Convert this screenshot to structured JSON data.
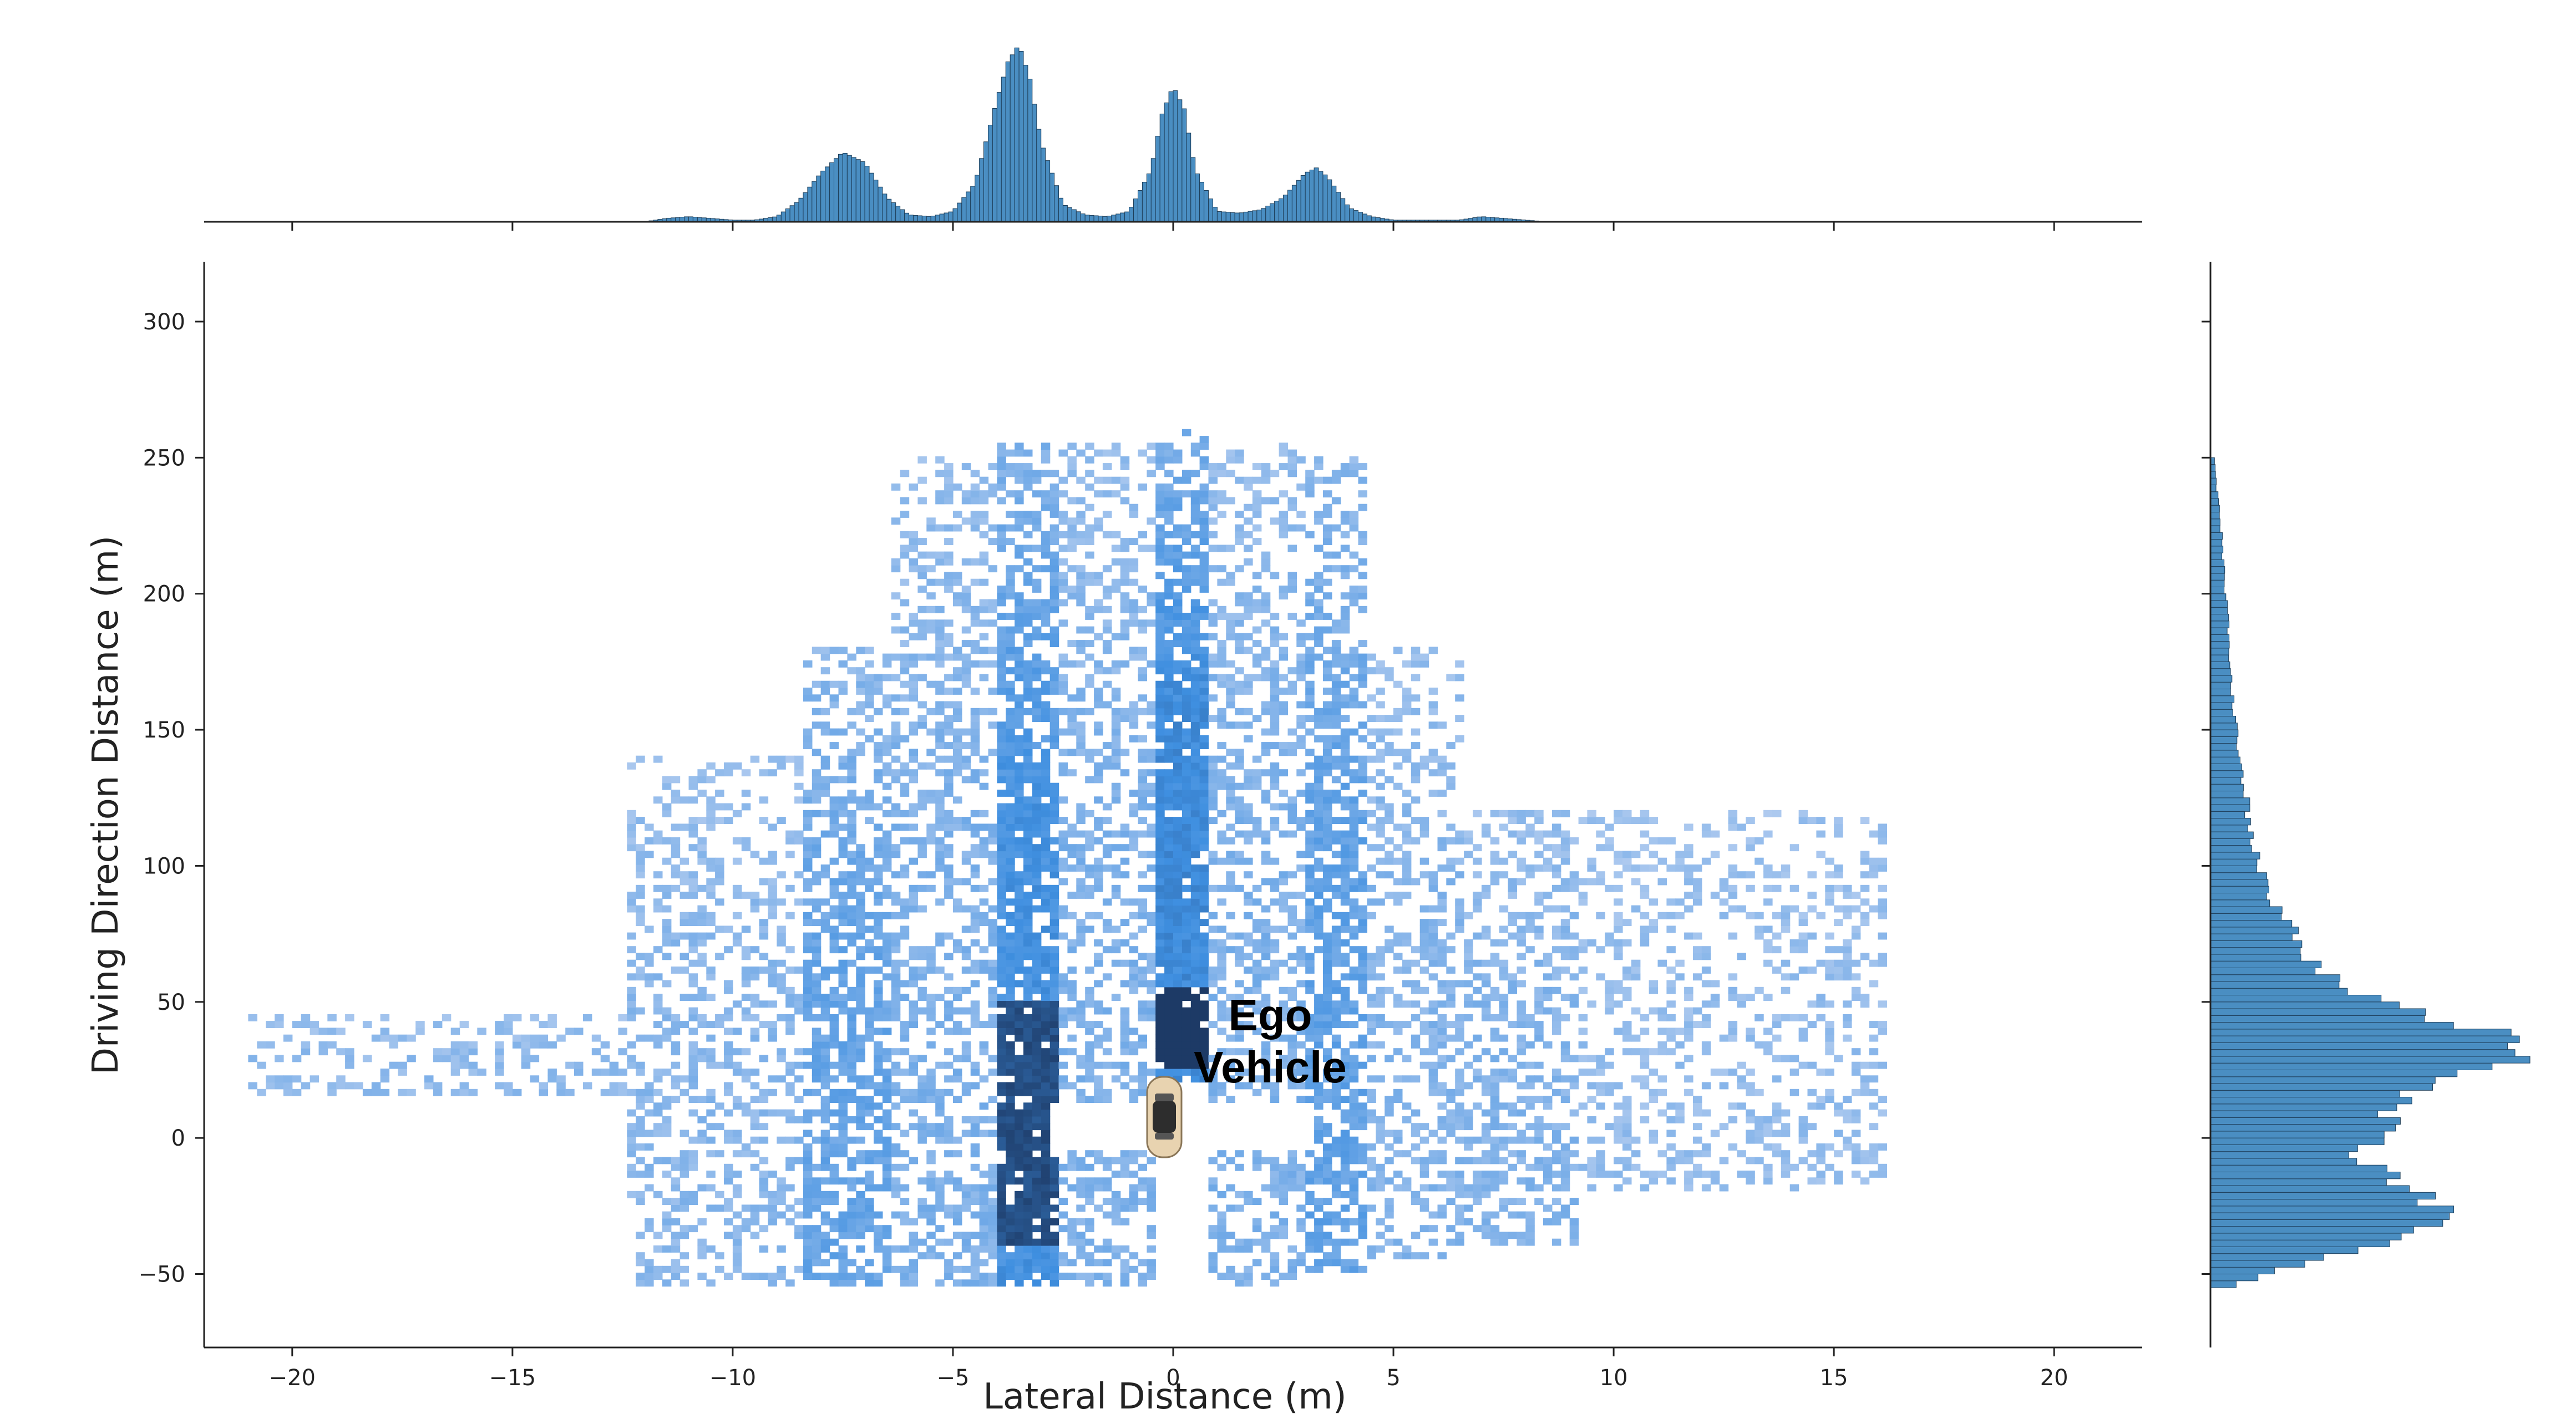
{
  "chart_data": {
    "type": "heatmap",
    "subtype": "joint 2D histogram with marginal histograms",
    "title": "",
    "xlabel": "Lateral Distance (m)",
    "ylabel": "Driving Direction Distance (m)",
    "xlim": [
      -22,
      22
    ],
    "ylim": [
      -77,
      322
    ],
    "xticks": [
      -20,
      -15,
      -10,
      -5,
      0,
      5,
      10,
      15,
      20
    ],
    "xtick_labels": [
      "−20",
      "−15",
      "−10",
      "−5",
      "0",
      "5",
      "10",
      "15",
      "20"
    ],
    "yticks": [
      -50,
      0,
      50,
      100,
      150,
      200,
      250,
      300
    ],
    "ytick_labels": [
      "−50",
      "0",
      "50",
      "100",
      "150",
      "200",
      "250",
      "300"
    ],
    "grid": false,
    "annotation": {
      "lines": [
        "Ego",
        "Vehicle"
      ],
      "marker": "car-icon",
      "marker_at": [
        0,
        0
      ]
    },
    "density_clusters": [
      {
        "x_range": [
          -21,
          -12
        ],
        "y_range": [
          15,
          45
        ],
        "intensity": 0.15
      },
      {
        "x_range": [
          -12.5,
          -8.5
        ],
        "y_range": [
          -55,
          140
        ],
        "intensity": 0.2
      },
      {
        "x_range": [
          -8.5,
          -6.5
        ],
        "y_range": [
          -55,
          180
        ],
        "intensity": 0.5
      },
      {
        "x_range": [
          -6.5,
          -4.2
        ],
        "y_range": [
          -55,
          250
        ],
        "intensity": 0.3
      },
      {
        "x_range": [
          -4.2,
          -2.8
        ],
        "y_range": [
          -55,
          255
        ],
        "intensity": 0.8
      },
      {
        "x_range": [
          -2.8,
          -0.6
        ],
        "y_range": [
          -55,
          255
        ],
        "intensity": 0.3
      },
      {
        "x_range": [
          -0.6,
          0.6
        ],
        "y_range": [
          20,
          260
        ],
        "intensity": 0.9
      },
      {
        "x_range": [
          0.6,
          2.8
        ],
        "y_range": [
          -55,
          255
        ],
        "intensity": 0.3
      },
      {
        "x_range": [
          2.8,
          4.2
        ],
        "y_range": [
          -50,
          250
        ],
        "intensity": 0.55
      },
      {
        "x_range": [
          4.2,
          6.5
        ],
        "y_range": [
          -45,
          180
        ],
        "intensity": 0.25
      },
      {
        "x_range": [
          6.5,
          9
        ],
        "y_range": [
          -40,
          120
        ],
        "intensity": 0.25
      },
      {
        "x_range": [
          9,
          16
        ],
        "y_range": [
          -20,
          120
        ],
        "intensity": 0.1
      }
    ],
    "x_marginal": {
      "x": [
        -12,
        -11.5,
        -11,
        -10.5,
        -10,
        -9.5,
        -9,
        -8.5,
        -8,
        -7.5,
        -7,
        -6.5,
        -6,
        -5.5,
        -5,
        -4.5,
        -4,
        -3.75,
        -3.5,
        -3.25,
        -3,
        -2.5,
        -2,
        -1.5,
        -1,
        -0.5,
        -0.25,
        0,
        0.25,
        0.5,
        1,
        1.5,
        2,
        2.5,
        3,
        3.25,
        3.5,
        4,
        4.5,
        5,
        5.5,
        6,
        6.5,
        7,
        7.5,
        8,
        8.5
      ],
      "counts": [
        0,
        2,
        3,
        2,
        1,
        1,
        3,
        12,
        28,
        40,
        34,
        14,
        4,
        3,
        6,
        22,
        70,
        92,
        102,
        82,
        46,
        10,
        4,
        3,
        6,
        30,
        62,
        78,
        65,
        30,
        6,
        5,
        7,
        14,
        28,
        31,
        26,
        8,
        3,
        1,
        1,
        1,
        1,
        3,
        2,
        1,
        0
      ]
    },
    "y_marginal": {
      "y": [
        -55,
        -50,
        -45,
        -40,
        -35,
        -30,
        -25,
        -20,
        -15,
        -10,
        -5,
        0,
        5,
        10,
        15,
        20,
        25,
        30,
        35,
        40,
        45,
        50,
        55,
        60,
        65,
        70,
        75,
        80,
        85,
        90,
        100,
        110,
        120,
        130,
        140,
        150,
        160,
        170,
        180,
        190,
        200,
        210,
        220,
        230,
        240,
        250
      ],
      "counts": [
        4,
        17,
        25,
        45,
        56,
        60,
        62,
        58,
        50,
        43,
        40,
        46,
        48,
        44,
        52,
        60,
        72,
        82,
        86,
        70,
        60,
        46,
        36,
        30,
        27,
        25,
        22,
        20,
        17,
        15,
        13,
        11,
        10,
        9,
        8,
        7,
        6,
        5.5,
        5,
        4.5,
        4,
        3.5,
        3,
        2.5,
        1.5,
        1
      ]
    }
  },
  "colors": {
    "heat_low": "#b4cdf0",
    "heat_mid": "#3f8fe0",
    "heat_high": "#1d3a66",
    "bar_fill": "#4a8ec2",
    "bar_edge": "#1e3f5a",
    "axis": "#222222"
  }
}
